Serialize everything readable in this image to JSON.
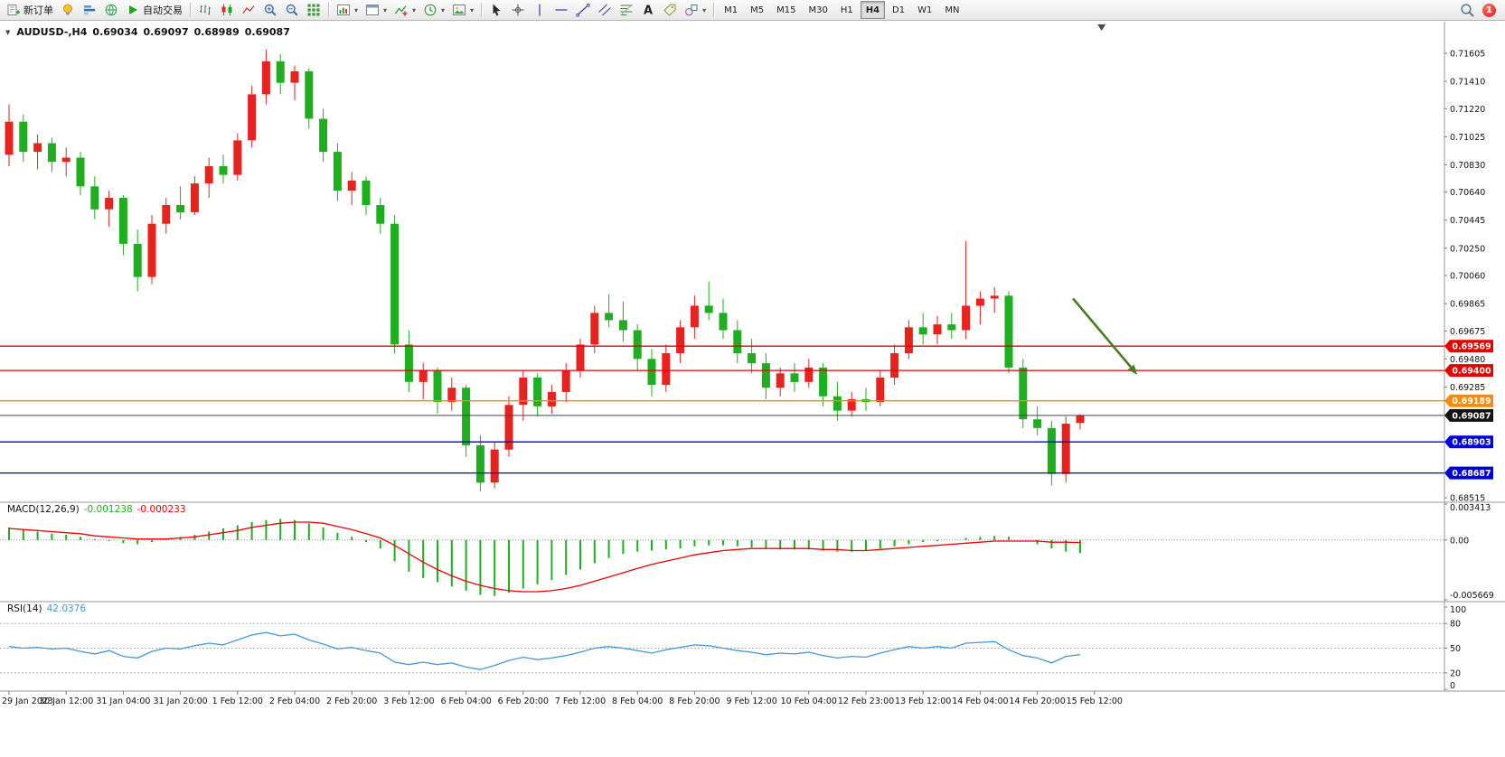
{
  "window": {
    "badge": "1"
  },
  "toolbar": {
    "items": [
      {
        "name": "new-order-button",
        "kind": "button",
        "icon": "neworder",
        "label": "新订单"
      },
      {
        "name": "algo-lamp-button",
        "kind": "button",
        "icon": "lamp"
      },
      {
        "name": "depth-of-market-button",
        "kind": "button",
        "icon": "depth"
      },
      {
        "name": "community-button",
        "kind": "button",
        "icon": "globe"
      },
      {
        "name": "auto-trading-button",
        "kind": "button",
        "icon": "play",
        "label": "自动交易"
      },
      {
        "kind": "sep"
      },
      {
        "name": "bar-chart-button",
        "kind": "button",
        "icon": "ohlc"
      },
      {
        "name": "candlestick-chart-button",
        "kind": "button",
        "icon": "candle"
      },
      {
        "name": "line-chart-button",
        "kind": "button",
        "icon": "linechart"
      },
      {
        "name": "zoom-in-button",
        "kind": "button",
        "icon": "zoomin"
      },
      {
        "name": "zoom-out-button",
        "kind": "button",
        "icon": "zoomout"
      },
      {
        "name": "tile-windows-button",
        "kind": "button",
        "icon": "grid"
      },
      {
        "kind": "sep"
      },
      {
        "name": "new-chart-button",
        "kind": "button",
        "icon": "newchart",
        "dropdown": true
      },
      {
        "name": "profiles-button",
        "kind": "button",
        "icon": "window",
        "dropdown": true
      },
      {
        "name": "indicators-button",
        "kind": "button",
        "icon": "indicator",
        "dropdown": true
      },
      {
        "name": "periods-button",
        "kind": "button",
        "icon": "clock",
        "dropdown": true
      },
      {
        "name": "templates-button",
        "kind": "button",
        "icon": "template",
        "dropdown": true
      },
      {
        "kind": "sep"
      },
      {
        "name": "cursor-button",
        "kind": "button",
        "icon": "cursor"
      },
      {
        "name": "crosshair-button",
        "kind": "button",
        "icon": "crosshair"
      },
      {
        "name": "vertical-line-button",
        "kind": "button",
        "icon": "vline"
      },
      {
        "name": "horizontal-line-button",
        "kind": "button",
        "icon": "hline"
      },
      {
        "name": "trendline-button",
        "kind": "button",
        "icon": "trend"
      },
      {
        "name": "channel-button",
        "kind": "button",
        "icon": "channel"
      },
      {
        "name": "fibonacci-button",
        "kind": "button",
        "icon": "fibo"
      },
      {
        "name": "text-button",
        "kind": "button",
        "icon": "text"
      },
      {
        "name": "arrows-button",
        "kind": "button",
        "icon": "label"
      },
      {
        "name": "shapes-button",
        "kind": "button",
        "icon": "shapes",
        "dropdown": true
      },
      {
        "kind": "sep"
      },
      {
        "kind": "timeframes"
      }
    ],
    "timeframes": {
      "options": [
        "M1",
        "M5",
        "M15",
        "M30",
        "H1",
        "H4",
        "D1",
        "W1",
        "MN"
      ],
      "active": "H4"
    }
  },
  "chart_data": {
    "type": "candlestick",
    "symbol_title": "AUDUSD-,H4",
    "ohlc": {
      "open": "0.69034",
      "high": "0.69097",
      "low": "0.68989",
      "close": "0.69087"
    },
    "colors": {
      "bull": "#e8231f",
      "bear": "#1fae1f",
      "macd_histogram": "#1fae1f",
      "macd_signal": "#f00000",
      "rsi_line": "#4598d8"
    },
    "price_axis": {
      "max": 0.718,
      "min": 0.68496,
      "labels": [
        "0.71605",
        "0.71410",
        "0.71220",
        "0.71025",
        "0.70830",
        "0.70640",
        "0.70445",
        "0.70250",
        "0.70060",
        "0.69865",
        "0.69675",
        "0.69480",
        "0.69285",
        "0.68515"
      ]
    },
    "hlines": [
      {
        "price": 0.69569,
        "label": "0.69569",
        "color": "#e60000",
        "w": 1.3
      },
      {
        "price": 0.694,
        "label": "0.69400",
        "color": "#e60000",
        "w": 1.3
      },
      {
        "price": 0.69189,
        "label": "0.69189",
        "color": "#ff8a00",
        "w": 1.3
      },
      {
        "price": 0.69087,
        "label": "0.69087",
        "color": "#454545",
        "tag": "#141414",
        "w": 1
      },
      {
        "price": 0.68903,
        "label": "0.68903",
        "color": "#0000dd",
        "w": 1.3
      },
      {
        "price": 0.68687,
        "label": "0.68687",
        "color": "#0000dd",
        "w": 1.3
      }
    ],
    "arrow": {
      "from_index": 74.5,
      "from_price": 0.699,
      "to_index": 79,
      "to_price": 0.6937,
      "color": "#4a7d21"
    },
    "shift_marker_index": 76.5,
    "label_every": 4,
    "time_labels": [
      "29 Jan 2023",
      "30 Jan 12:00",
      "31 Jan 04:00",
      "31 Jan 20:00",
      "1 Feb 12:00",
      "2 Feb 04:00",
      "2 Feb 20:00",
      "3 Feb 12:00",
      "6 Feb 04:00",
      "6 Feb 20:00",
      "7 Feb 12:00",
      "8 Feb 04:00",
      "8 Feb 20:00",
      "9 Feb 12:00",
      "10 Feb 04:00",
      "12 Feb 23:00",
      "13 Feb 12:00",
      "14 Feb 04:00",
      "14 Feb 20:00",
      "15 Feb 12:00"
    ],
    "candles": [
      [
        0.709,
        0.7125,
        0.7082,
        0.7113
      ],
      [
        0.7113,
        0.7118,
        0.7085,
        0.7092
      ],
      [
        0.7092,
        0.7104,
        0.708,
        0.7098
      ],
      [
        0.7098,
        0.7102,
        0.7078,
        0.7085
      ],
      [
        0.7085,
        0.7095,
        0.7075,
        0.7088
      ],
      [
        0.7088,
        0.7092,
        0.7062,
        0.7068
      ],
      [
        0.7068,
        0.7075,
        0.7045,
        0.7052
      ],
      [
        0.7052,
        0.7065,
        0.704,
        0.706
      ],
      [
        0.706,
        0.7062,
        0.702,
        0.7028
      ],
      [
        0.7028,
        0.7038,
        0.6995,
        0.7005
      ],
      [
        0.7005,
        0.7048,
        0.7,
        0.7042
      ],
      [
        0.7042,
        0.706,
        0.7035,
        0.7055
      ],
      [
        0.7055,
        0.7068,
        0.7045,
        0.705
      ],
      [
        0.705,
        0.7075,
        0.7048,
        0.707
      ],
      [
        0.707,
        0.7088,
        0.706,
        0.7082
      ],
      [
        0.7082,
        0.709,
        0.707,
        0.7076
      ],
      [
        0.7076,
        0.7105,
        0.7072,
        0.71
      ],
      [
        0.71,
        0.7138,
        0.7095,
        0.7132
      ],
      [
        0.7132,
        0.7163,
        0.7125,
        0.7155
      ],
      [
        0.7155,
        0.716,
        0.7132,
        0.714
      ],
      [
        0.714,
        0.7152,
        0.7128,
        0.7148
      ],
      [
        0.7148,
        0.715,
        0.7108,
        0.7115
      ],
      [
        0.7115,
        0.7122,
        0.7085,
        0.7092
      ],
      [
        0.7092,
        0.7098,
        0.7058,
        0.7065
      ],
      [
        0.7065,
        0.7078,
        0.7055,
        0.7072
      ],
      [
        0.7072,
        0.7075,
        0.7048,
        0.7055
      ],
      [
        0.7055,
        0.706,
        0.7035,
        0.7042
      ],
      [
        0.7042,
        0.7048,
        0.6952,
        0.6958
      ],
      [
        0.6958,
        0.6968,
        0.6925,
        0.6932
      ],
      [
        0.6932,
        0.6945,
        0.692,
        0.694
      ],
      [
        0.694,
        0.6942,
        0.691,
        0.6918
      ],
      [
        0.6918,
        0.6935,
        0.6912,
        0.6928
      ],
      [
        0.6928,
        0.693,
        0.688,
        0.6888
      ],
      [
        0.6888,
        0.6895,
        0.6856,
        0.6862
      ],
      [
        0.6862,
        0.689,
        0.6858,
        0.6885
      ],
      [
        0.6885,
        0.6922,
        0.688,
        0.6916
      ],
      [
        0.6916,
        0.694,
        0.6905,
        0.6935
      ],
      [
        0.6935,
        0.6938,
        0.6908,
        0.6915
      ],
      [
        0.6915,
        0.693,
        0.691,
        0.6925
      ],
      [
        0.6925,
        0.6945,
        0.6918,
        0.694
      ],
      [
        0.694,
        0.6962,
        0.6935,
        0.6958
      ],
      [
        0.6958,
        0.6985,
        0.6952,
        0.698
      ],
      [
        0.698,
        0.6993,
        0.697,
        0.6975
      ],
      [
        0.6975,
        0.6988,
        0.696,
        0.6968
      ],
      [
        0.6968,
        0.6972,
        0.694,
        0.6948
      ],
      [
        0.6948,
        0.6955,
        0.6922,
        0.693
      ],
      [
        0.693,
        0.6958,
        0.6925,
        0.6952
      ],
      [
        0.6952,
        0.6975,
        0.6945,
        0.697
      ],
      [
        0.697,
        0.6992,
        0.6962,
        0.6985
      ],
      [
        0.6985,
        0.7002,
        0.6975,
        0.698
      ],
      [
        0.698,
        0.699,
        0.6962,
        0.6968
      ],
      [
        0.6968,
        0.6975,
        0.6945,
        0.6952
      ],
      [
        0.6952,
        0.6962,
        0.6938,
        0.6945
      ],
      [
        0.6945,
        0.6952,
        0.692,
        0.6928
      ],
      [
        0.6928,
        0.6942,
        0.6922,
        0.6938
      ],
      [
        0.6938,
        0.6945,
        0.6925,
        0.6932
      ],
      [
        0.6932,
        0.6948,
        0.6928,
        0.6942
      ],
      [
        0.6942,
        0.6945,
        0.6915,
        0.6922
      ],
      [
        0.6922,
        0.6932,
        0.6905,
        0.6912
      ],
      [
        0.6912,
        0.6925,
        0.6908,
        0.692
      ],
      [
        0.692,
        0.6928,
        0.6912,
        0.6918
      ],
      [
        0.6918,
        0.694,
        0.6915,
        0.6935
      ],
      [
        0.6935,
        0.6958,
        0.693,
        0.6952
      ],
      [
        0.6952,
        0.6975,
        0.6948,
        0.697
      ],
      [
        0.697,
        0.698,
        0.6958,
        0.6965
      ],
      [
        0.6965,
        0.6978,
        0.6958,
        0.6972
      ],
      [
        0.6972,
        0.698,
        0.6962,
        0.6968
      ],
      [
        0.6968,
        0.703,
        0.6962,
        0.6985
      ],
      [
        0.6985,
        0.6995,
        0.6972,
        0.699
      ],
      [
        0.699,
        0.6998,
        0.698,
        0.6992
      ],
      [
        0.6992,
        0.6995,
        0.6938,
        0.6942
      ],
      [
        0.6942,
        0.6948,
        0.69,
        0.6906
      ],
      [
        0.6906,
        0.6915,
        0.6895,
        0.69
      ],
      [
        0.69,
        0.6905,
        0.686,
        0.6868
      ],
      [
        0.6868,
        0.6908,
        0.6862,
        0.6903
      ],
      [
        0.69034,
        0.69097,
        0.68989,
        0.69087
      ]
    ],
    "macd": {
      "name": "MACD(12,26,9)",
      "value_main": "-0.001238",
      "value_signal": "-0.000233",
      "scale": {
        "max": 0.003413,
        "min": -0.005669,
        "ticks": [
          [
            "0.003413",
            0.003413
          ],
          [
            "0.00",
            0
          ],
          [
            "-0.005669",
            -0.005669
          ]
        ]
      },
      "histogram": [
        0.0012,
        0.001,
        0.0008,
        0.0006,
        0.0005,
        0.0003,
        0.0001,
        -0.0001,
        -0.0003,
        -0.0004,
        -0.0002,
        0.0001,
        0.0003,
        0.0005,
        0.0008,
        0.0011,
        0.0014,
        0.0017,
        0.0019,
        0.002,
        0.0019,
        0.0016,
        0.0012,
        0.0007,
        0.0003,
        -0.0002,
        -0.0008,
        -0.002,
        -0.003,
        -0.0036,
        -0.004,
        -0.0044,
        -0.0048,
        -0.0052,
        -0.0053,
        -0.005,
        -0.0046,
        -0.0042,
        -0.0038,
        -0.0033,
        -0.0028,
        -0.0022,
        -0.0017,
        -0.0013,
        -0.0011,
        -0.001,
        -0.0009,
        -0.0008,
        -0.0006,
        -0.0005,
        -0.0005,
        -0.0006,
        -0.0007,
        -0.0008,
        -0.0009,
        -0.0009,
        -0.0009,
        -0.001,
        -0.0011,
        -0.0011,
        -0.001,
        -0.0008,
        -0.0006,
        -0.0004,
        -0.0002,
        -0.0001,
        0.0,
        0.0002,
        0.0003,
        0.0004,
        0.0003,
        0.0,
        -0.0004,
        -0.0008,
        -0.0011,
        -0.001238
      ],
      "signal": [
        0.0011,
        0.001,
        0.0009,
        0.0008,
        0.0007,
        0.0006,
        0.0004,
        0.0003,
        0.0002,
        0.0001,
        0.0001,
        0.0001,
        0.0002,
        0.0003,
        0.0005,
        0.0007,
        0.0009,
        0.0012,
        0.0014,
        0.0016,
        0.0017,
        0.0017,
        0.0016,
        0.0013,
        0.001,
        0.0006,
        0.0002,
        -0.0005,
        -0.0013,
        -0.0021,
        -0.0028,
        -0.0034,
        -0.0039,
        -0.0043,
        -0.0046,
        -0.0048,
        -0.0049,
        -0.0049,
        -0.0048,
        -0.0046,
        -0.0043,
        -0.0039,
        -0.0035,
        -0.0031,
        -0.0027,
        -0.0023,
        -0.002,
        -0.0017,
        -0.0014,
        -0.0012,
        -0.001,
        -0.0009,
        -0.0008,
        -0.0008,
        -0.0008,
        -0.0008,
        -0.0008,
        -0.0009,
        -0.0009,
        -0.001,
        -0.001,
        -0.0009,
        -0.0008,
        -0.0007,
        -0.0006,
        -0.0005,
        -0.0004,
        -0.0003,
        -0.0002,
        -0.0001,
        -0.0001,
        -0.0001,
        -0.0001,
        -0.0002,
        -0.0002,
        -0.000233
      ]
    },
    "rsi": {
      "name": "RSI(14)",
      "value": "42.0376",
      "levels": [
        80,
        50,
        20
      ],
      "ticks": [
        [
          "100",
          100
        ],
        [
          "80",
          80
        ],
        [
          "50",
          50
        ],
        [
          "20",
          20
        ],
        [
          "0",
          0
        ]
      ],
      "values": [
        52,
        50,
        51,
        49,
        50,
        46,
        43,
        47,
        40,
        38,
        46,
        50,
        49,
        53,
        56,
        54,
        60,
        66,
        69,
        65,
        67,
        60,
        55,
        49,
        51,
        47,
        44,
        33,
        30,
        33,
        30,
        32,
        27,
        24,
        29,
        35,
        39,
        36,
        38,
        41,
        45,
        50,
        52,
        50,
        47,
        44,
        48,
        51,
        54,
        53,
        50,
        47,
        45,
        42,
        44,
        43,
        45,
        41,
        38,
        40,
        39,
        44,
        48,
        52,
        50,
        52,
        50,
        56,
        57,
        58,
        48,
        41,
        38,
        32,
        40,
        42.0376
      ]
    }
  }
}
